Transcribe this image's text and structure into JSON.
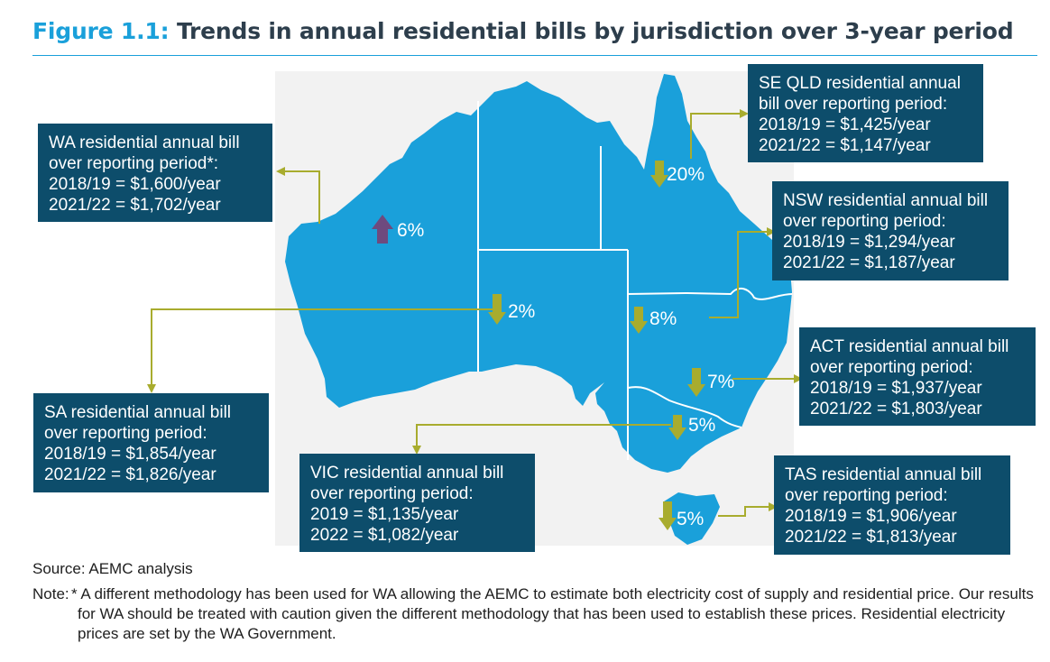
{
  "figure": {
    "number": "Figure 1.1:",
    "title": "Trends in annual residential bills by jurisdiction over 3-year period"
  },
  "map": {
    "colors": {
      "land": "#1aa0da",
      "border": "#ffffff",
      "frame": "#f2f2f2",
      "connector": "#a8ac2e",
      "down_arrow": "#a8ac2e",
      "up_arrow": "#6e4a7e",
      "box": "#0d4d6b"
    },
    "regions": [
      {
        "id": "wa",
        "name": "WA",
        "trend": "up",
        "change": "6%",
        "callout": [
          "WA residential annual bill",
          "over reporting period*:",
          "2018/19 = $1,600/year",
          "2021/22 = $1,702/year"
        ]
      },
      {
        "id": "sa",
        "name": "SA",
        "trend": "down",
        "change": "2%",
        "callout": [
          "SA residential annual bill",
          "over reporting period:",
          "2018/19 = $1,854/year",
          "2021/22 = $1,826/year"
        ]
      },
      {
        "id": "vic",
        "name": "VIC",
        "trend": "down",
        "change": "5%",
        "callout": [
          "VIC residential annual bill",
          "over reporting period:",
          "2019 = $1,135/year",
          "2022 = $1,082/year"
        ]
      },
      {
        "id": "seqld",
        "name": "SE QLD",
        "trend": "down",
        "change": "20%",
        "callout": [
          "SE QLD residential annual",
          "bill over reporting period:",
          "2018/19 = $1,425/year",
          "2021/22 = $1,147/year"
        ]
      },
      {
        "id": "nsw",
        "name": "NSW",
        "trend": "down",
        "change": "8%",
        "callout": [
          "NSW residential annual bill",
          "over reporting period:",
          "2018/19 = $1,294/year",
          "2021/22 = $1,187/year"
        ]
      },
      {
        "id": "act",
        "name": "ACT",
        "trend": "down",
        "change": "7%",
        "callout": [
          "ACT residential annual bill",
          "over reporting period:",
          "2018/19 = $1,937/year",
          "2021/22 = $1,803/year"
        ]
      },
      {
        "id": "tas",
        "name": "TAS",
        "trend": "down",
        "change": "5%",
        "callout": [
          "TAS residential annual bill",
          "over reporting period:",
          "2018/19 = $1,906/year",
          "2021/22 = $1,813/year"
        ]
      }
    ]
  },
  "source": "Source: AEMC analysis",
  "note": {
    "label": "Note:",
    "text": "* A different methodology has been used for WA allowing the AEMC to estimate both electricity cost of supply and residential price. Our results for WA should be treated with caution given the different methodology that has been used to establish these prices. Residential electricity prices are set by the WA Government."
  }
}
